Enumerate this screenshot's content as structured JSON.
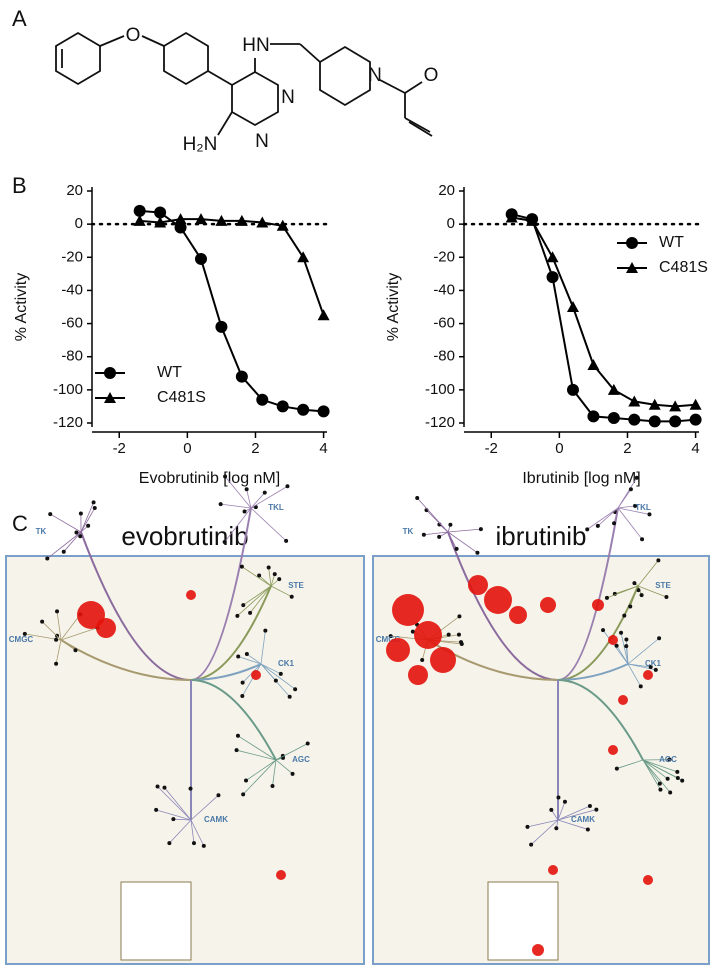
{
  "panel_labels": [
    "A",
    "B",
    "C"
  ],
  "structure": {
    "atoms": [
      "O",
      "HN",
      "N",
      "N",
      "N",
      "O",
      "H₂N"
    ]
  },
  "chart_data": [
    {
      "type": "line",
      "x_label": "Evobrutinib [log nM]",
      "y_label": "% Activity",
      "x": [
        -1.4,
        -0.8,
        -0.2,
        0.4,
        1.0,
        1.6,
        2.2,
        2.8,
        3.4,
        4.0
      ],
      "series": [
        {
          "name": "WT",
          "color": "#000000",
          "marker": "circle",
          "values": [
            8,
            7,
            -2,
            -21,
            -62,
            -92,
            -106,
            -110,
            -112,
            -113
          ]
        },
        {
          "name": "C481S",
          "color": "#000000",
          "marker": "triangle",
          "values": [
            2,
            1,
            3,
            3,
            2,
            2,
            1,
            -1,
            -20,
            -55
          ]
        }
      ],
      "xlim": [
        -2.8,
        4.1
      ],
      "xticks": [
        -2,
        0,
        2,
        4
      ],
      "ylim": [
        -120,
        20
      ],
      "yticks": [
        20,
        0,
        -20,
        -40,
        -60,
        -80,
        -100,
        -120
      ],
      "hline": 0,
      "legend": "lower left"
    },
    {
      "type": "line",
      "x_label": "Ibrutinib [log nM]",
      "y_label": "% Activity",
      "x": [
        -1.4,
        -0.8,
        -0.2,
        0.4,
        1.0,
        1.6,
        2.2,
        2.8,
        3.4,
        4.0
      ],
      "series": [
        {
          "name": "WT",
          "color": "#000000",
          "marker": "circle",
          "values": [
            6,
            3,
            -32,
            -100,
            -116,
            -117,
            -118,
            -119,
            -119,
            -118
          ]
        },
        {
          "name": "C481S",
          "color": "#000000",
          "marker": "triangle",
          "values": [
            4,
            2,
            -20,
            -50,
            -85,
            -100,
            -107,
            -109,
            -110,
            -109
          ]
        }
      ],
      "xlim": [
        -2.8,
        4.1
      ],
      "xticks": [
        -2,
        0,
        2,
        4
      ],
      "ylim": [
        -120,
        20
      ],
      "yticks": [
        20,
        0,
        -20,
        -40,
        -60,
        -80,
        -100,
        -120
      ],
      "hline": 0,
      "legend": "upper right"
    }
  ],
  "kinome": [
    {
      "title": "evobrutinib",
      "groups": [
        "TK",
        "TKL",
        "STE",
        "CMGC",
        "CK1",
        "AGC",
        "CAMK"
      ]
    },
    {
      "title": "ibrutinib",
      "groups": [
        "TK",
        "TKL",
        "STE",
        "CMGC",
        "CK1",
        "AGC",
        "CAMK"
      ]
    }
  ]
}
